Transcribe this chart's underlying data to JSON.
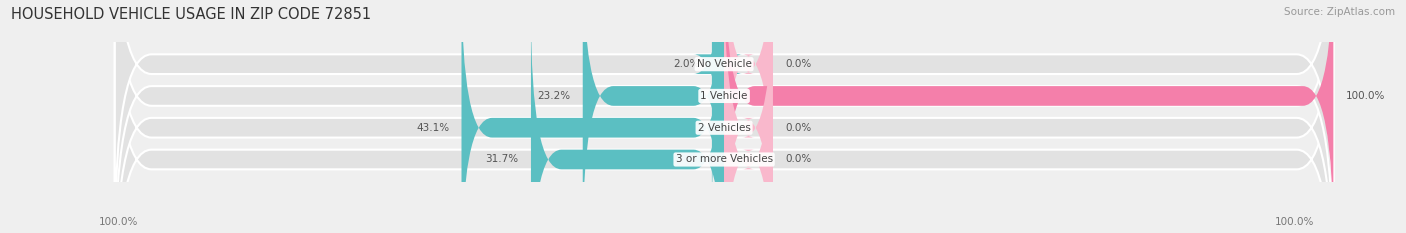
{
  "title": "HOUSEHOLD VEHICLE USAGE IN ZIP CODE 72851",
  "source": "Source: ZipAtlas.com",
  "categories": [
    "No Vehicle",
    "1 Vehicle",
    "2 Vehicles",
    "3 or more Vehicles"
  ],
  "owner_values": [
    2.0,
    23.2,
    43.1,
    31.7
  ],
  "renter_values": [
    0.0,
    100.0,
    0.0,
    0.0
  ],
  "owner_color": "#5bbfc2",
  "renter_color": "#f47faa",
  "renter_color_light": "#f9b8cc",
  "bg_color": "#efefef",
  "bar_bg_color": "#e2e2e2",
  "bar_height": 0.62,
  "title_fontsize": 10.5,
  "source_fontsize": 7.5,
  "label_fontsize": 7.5,
  "legend_fontsize": 8,
  "axis_label_fontsize": 7.5,
  "max_val": 100.0,
  "left_axis_label": "100.0%",
  "right_axis_label": "100.0%"
}
